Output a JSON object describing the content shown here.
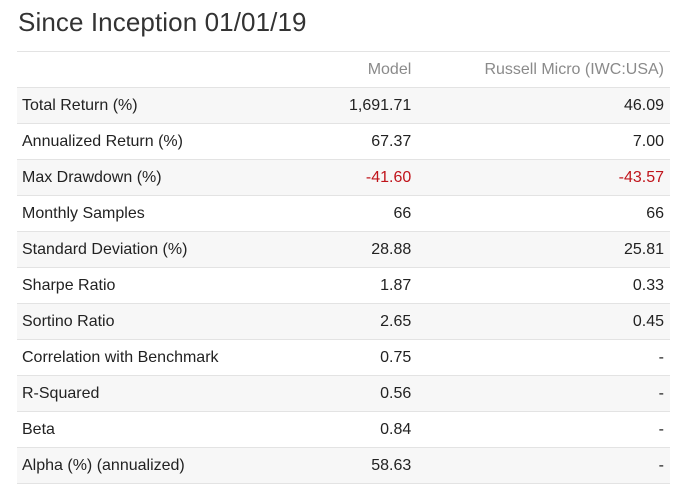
{
  "title": "Since Inception 01/01/19",
  "table": {
    "headers": {
      "label": "",
      "model": "Model",
      "benchmark": "Russell Micro (IWC:USA)"
    },
    "rows": [
      {
        "label": "Total Return (%)",
        "model": "1,691.71",
        "benchmark": "46.09"
      },
      {
        "label": "Annualized Return (%)",
        "model": "67.37",
        "benchmark": "7.00"
      },
      {
        "label": "Max Drawdown (%)",
        "model": "-41.60",
        "benchmark": "-43.57"
      },
      {
        "label": "Monthly Samples",
        "model": "66",
        "benchmark": "66"
      },
      {
        "label": "Standard Deviation (%)",
        "model": "28.88",
        "benchmark": "25.81"
      },
      {
        "label": "Sharpe Ratio",
        "model": "1.87",
        "benchmark": "0.33"
      },
      {
        "label": "Sortino Ratio",
        "model": "2.65",
        "benchmark": "0.45"
      },
      {
        "label": "Correlation with Benchmark",
        "model": "0.75",
        "benchmark": "-"
      },
      {
        "label": "R-Squared",
        "model": "0.56",
        "benchmark": "-"
      },
      {
        "label": "Beta",
        "model": "0.84",
        "benchmark": "-"
      },
      {
        "label": "Alpha (%) (annualized)",
        "model": "58.63",
        "benchmark": "-"
      }
    ]
  },
  "colors": {
    "negative": "#c0141b"
  }
}
